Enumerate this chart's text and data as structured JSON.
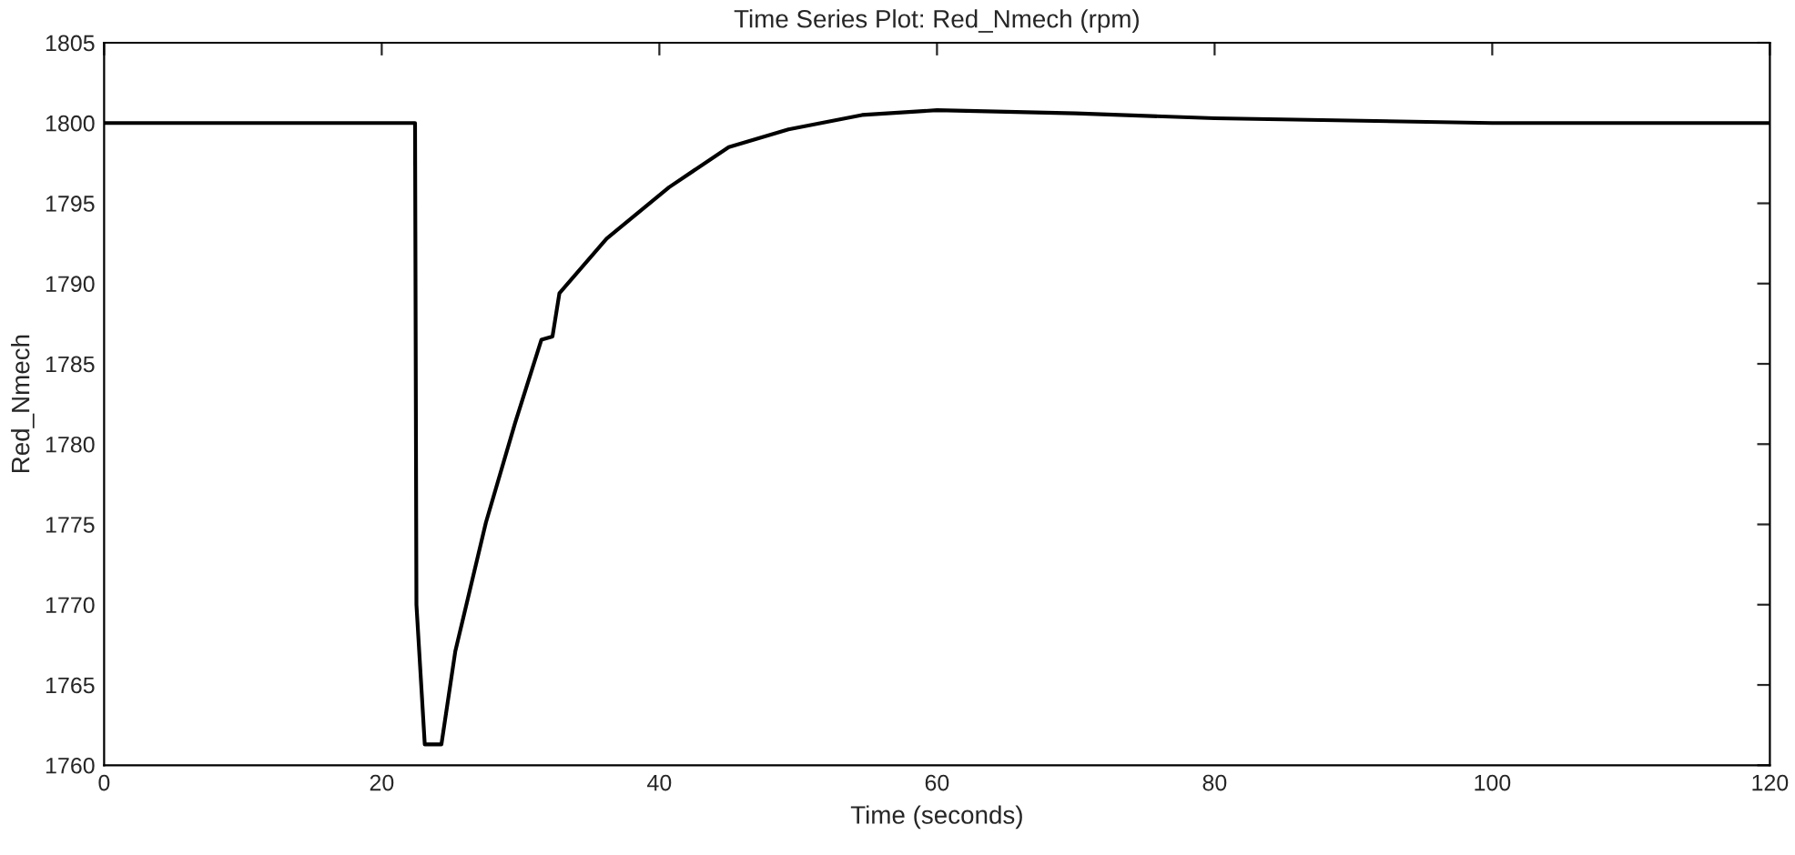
{
  "chart_data": {
    "type": "line",
    "title": "Time Series Plot: Red_Nmech (rpm)",
    "xlabel": "Time (seconds)",
    "ylabel": "Red_Nmech",
    "x": [
      0,
      22.4,
      22.5,
      23.1,
      24.3,
      25.3,
      27.5,
      29.6,
      31.5,
      32.3,
      32.8,
      36.2,
      40.7,
      45,
      49.3,
      54.6,
      60,
      70,
      80,
      100,
      120
    ],
    "series": [
      {
        "color": "#000000",
        "values": [
          1800,
          1800,
          1770,
          1761.3,
          1761.3,
          1767.1,
          1775.1,
          1781.3,
          1786.5,
          1786.7,
          1789.4,
          1792.8,
          1796,
          1798.5,
          1799.6,
          1800.5,
          1800.8,
          1800.6,
          1800.3,
          1800,
          1800
        ]
      }
    ],
    "xlim": [
      0,
      120
    ],
    "xticks": [
      0,
      20,
      40,
      60,
      80,
      100,
      120
    ],
    "ylim": [
      1760,
      1805
    ],
    "yticks": [
      1760,
      1765,
      1770,
      1775,
      1780,
      1785,
      1790,
      1795,
      1800,
      1805
    ],
    "grid": false,
    "legend": false,
    "marker": "none",
    "line_style": "solid"
  }
}
